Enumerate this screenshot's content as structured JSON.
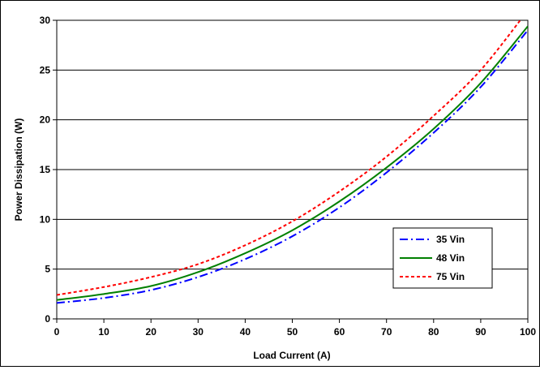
{
  "chart_data": {
    "type": "line",
    "title": "",
    "xlabel": "Load Current (A)",
    "ylabel": "Power Dissipation (W)",
    "xlim": [
      0,
      100
    ],
    "ylim": [
      0,
      30
    ],
    "x_ticks": [
      "0",
      "10",
      "20",
      "30",
      "40",
      "50",
      "60",
      "70",
      "80",
      "90",
      "100"
    ],
    "y_ticks": [
      "0",
      "5",
      "10",
      "15",
      "20",
      "25",
      "30"
    ],
    "grid": "horizontal major",
    "legend_position": "right, lower-middle",
    "series": [
      {
        "name": "35 Vin",
        "color": "#0000ff",
        "dash": "dash-dot",
        "x": [
          0,
          10,
          20,
          30,
          40,
          50,
          60,
          70,
          80,
          90,
          100
        ],
        "y": [
          1.6,
          2.1,
          2.9,
          4.2,
          6.0,
          8.3,
          11.2,
          14.7,
          18.7,
          23.3,
          29.0
        ]
      },
      {
        "name": "48 Vin",
        "color": "#008000",
        "dash": "solid",
        "x": [
          0,
          10,
          20,
          30,
          40,
          50,
          60,
          70,
          80,
          90,
          100
        ],
        "y": [
          1.9,
          2.5,
          3.3,
          4.7,
          6.6,
          8.9,
          11.8,
          15.2,
          19.1,
          23.7,
          29.4
        ]
      },
      {
        "name": "75 Vin",
        "color": "#ff0000",
        "dash": "dotted",
        "x": [
          0,
          10,
          20,
          30,
          40,
          50,
          60,
          70,
          80,
          90,
          100
        ],
        "y": [
          2.4,
          3.2,
          4.2,
          5.5,
          7.4,
          9.8,
          12.8,
          16.3,
          20.4,
          25.0,
          31.0
        ]
      }
    ]
  }
}
